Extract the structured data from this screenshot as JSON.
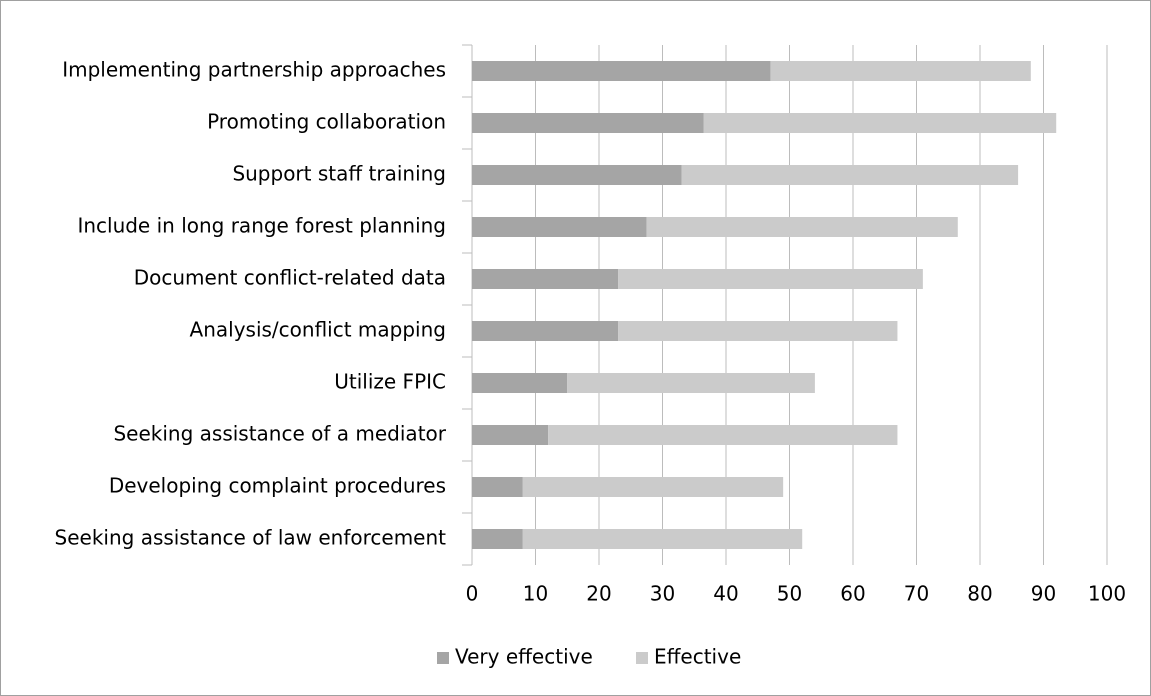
{
  "chart_data": {
    "type": "stacked-bar-horizontal",
    "categories": [
      "Implementing partnership approaches",
      "Promoting collaboration",
      "Support staff training",
      "Include in long range forest planning",
      "Document conflict-related data",
      "Analysis/conflict mapping",
      "Utilize FPIC",
      "Seeking assistance of a mediator",
      "Developing complaint procedures",
      "Seeking assistance of law enforcement"
    ],
    "series": [
      {
        "name": "Very effective",
        "color": "#a5a5a5",
        "values": [
          47,
          36.5,
          33,
          27.5,
          23,
          23,
          15,
          12,
          8,
          8
        ]
      },
      {
        "name": "Effective",
        "color": "#cbcbcb",
        "values": [
          41,
          55.5,
          53,
          49,
          48,
          44,
          39,
          55,
          41,
          44
        ]
      }
    ],
    "xlim": [
      0,
      100
    ],
    "xticks": [
      0,
      10,
      20,
      30,
      40,
      50,
      60,
      70,
      80,
      90,
      100
    ],
    "grid": true,
    "legend": "bottom"
  }
}
